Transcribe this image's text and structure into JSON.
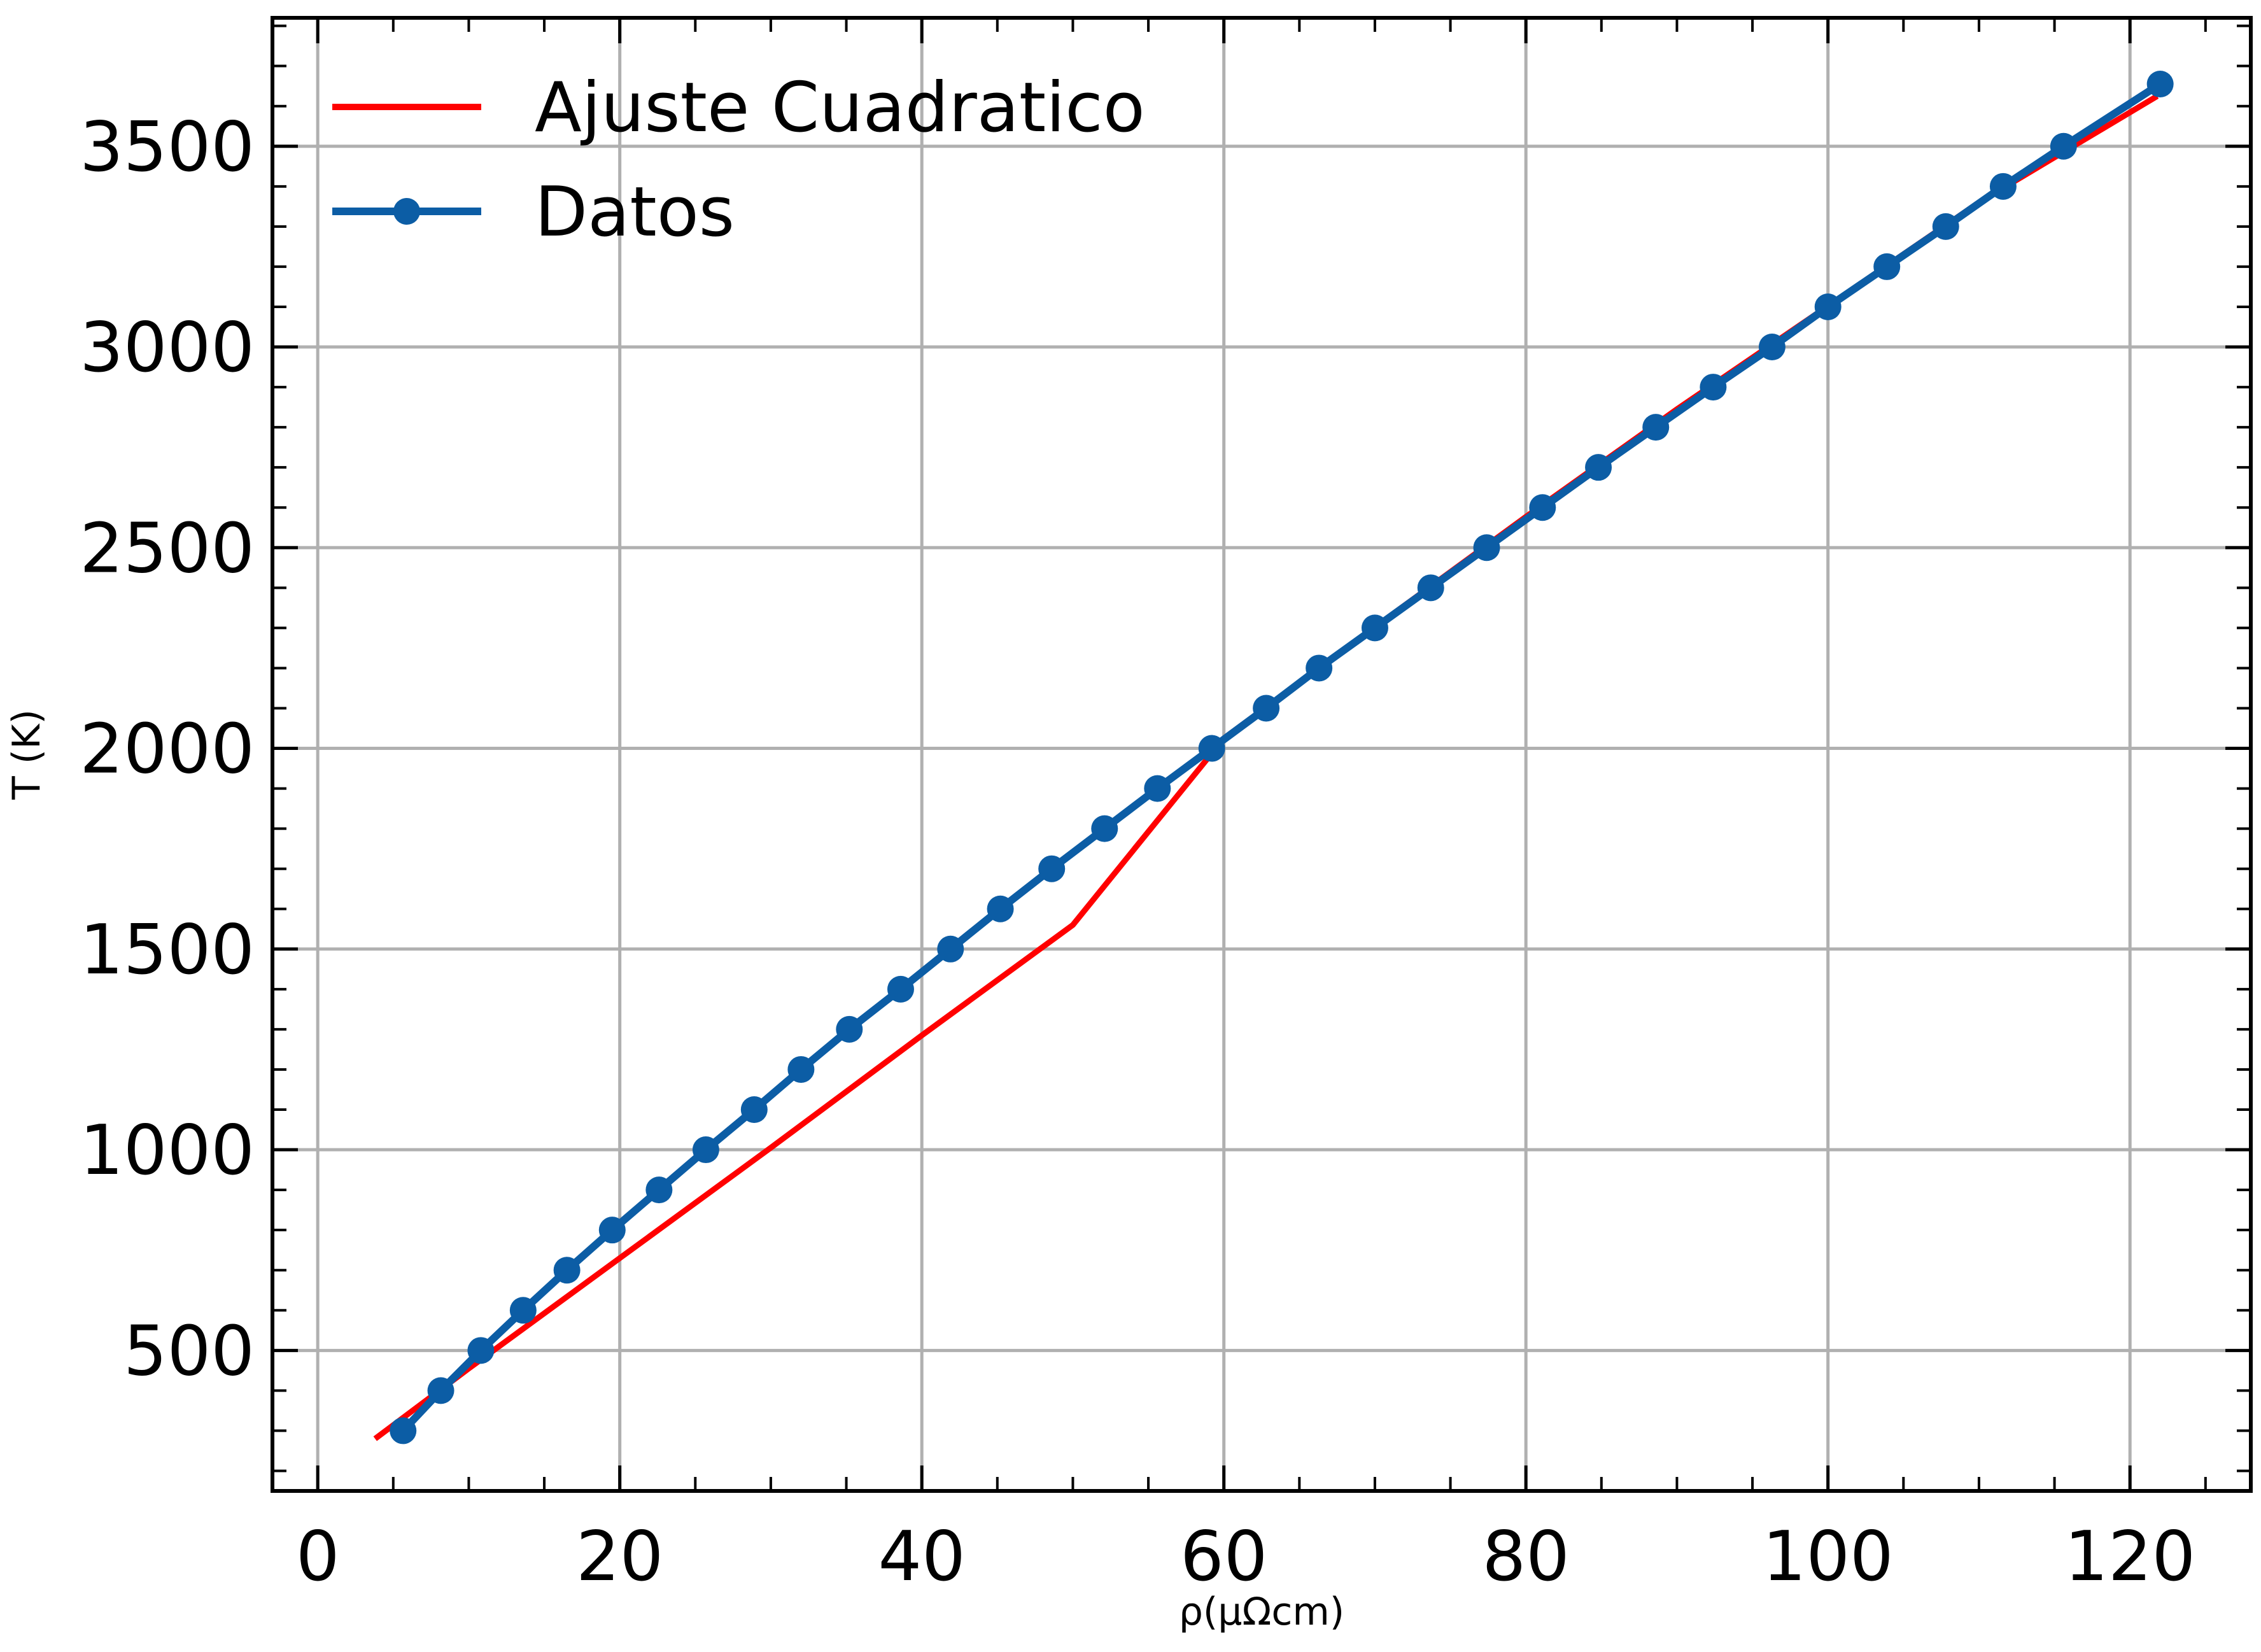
{
  "chart_data": {
    "type": "line",
    "xlabel": "ρ(μΩcm)",
    "ylabel": "T (K)",
    "xlim": [
      -3,
      128
    ],
    "ylim": [
      150,
      3820
    ],
    "x_ticks": [
      0,
      20,
      40,
      60,
      80,
      100,
      120
    ],
    "y_ticks": [
      500,
      1000,
      1500,
      2000,
      2500,
      3000,
      3500
    ],
    "grid": true,
    "legend_position": "top-left",
    "series": [
      {
        "name": "Ajuste Cuadratico",
        "color": "#ff0000",
        "style": "line",
        "x": [
          3.8,
          10,
          20,
          30,
          40,
          50,
          60,
          70,
          80,
          90,
          100,
          110,
          121.8
        ],
        "y": [
          280,
          455,
          730,
          1005,
          1285,
          1560,
          2025,
          2302,
          2577,
          2845,
          3102,
          3360,
          3625
        ]
      },
      {
        "name": "Datos",
        "color": "#0c5da5",
        "style": "line-marker",
        "x": [
          5.65,
          8.15,
          10.8,
          13.6,
          16.5,
          19.5,
          22.6,
          25.7,
          28.9,
          32.0,
          35.2,
          38.6,
          41.9,
          45.2,
          48.6,
          52.1,
          55.6,
          59.2,
          62.8,
          66.3,
          70.0,
          73.7,
          77.4,
          81.1,
          84.8,
          88.6,
          92.4,
          96.3,
          100.0,
          103.9,
          107.8,
          111.6,
          115.6,
          122.0
        ],
        "y": [
          300,
          400,
          500,
          600,
          700,
          800,
          900,
          1000,
          1100,
          1200,
          1300,
          1400,
          1500,
          1600,
          1700,
          1800,
          1900,
          2000,
          2100,
          2200,
          2300,
          2400,
          2500,
          2600,
          2700,
          2800,
          2900,
          3000,
          3100,
          3200,
          3300,
          3400,
          3500,
          3655
        ]
      }
    ]
  }
}
